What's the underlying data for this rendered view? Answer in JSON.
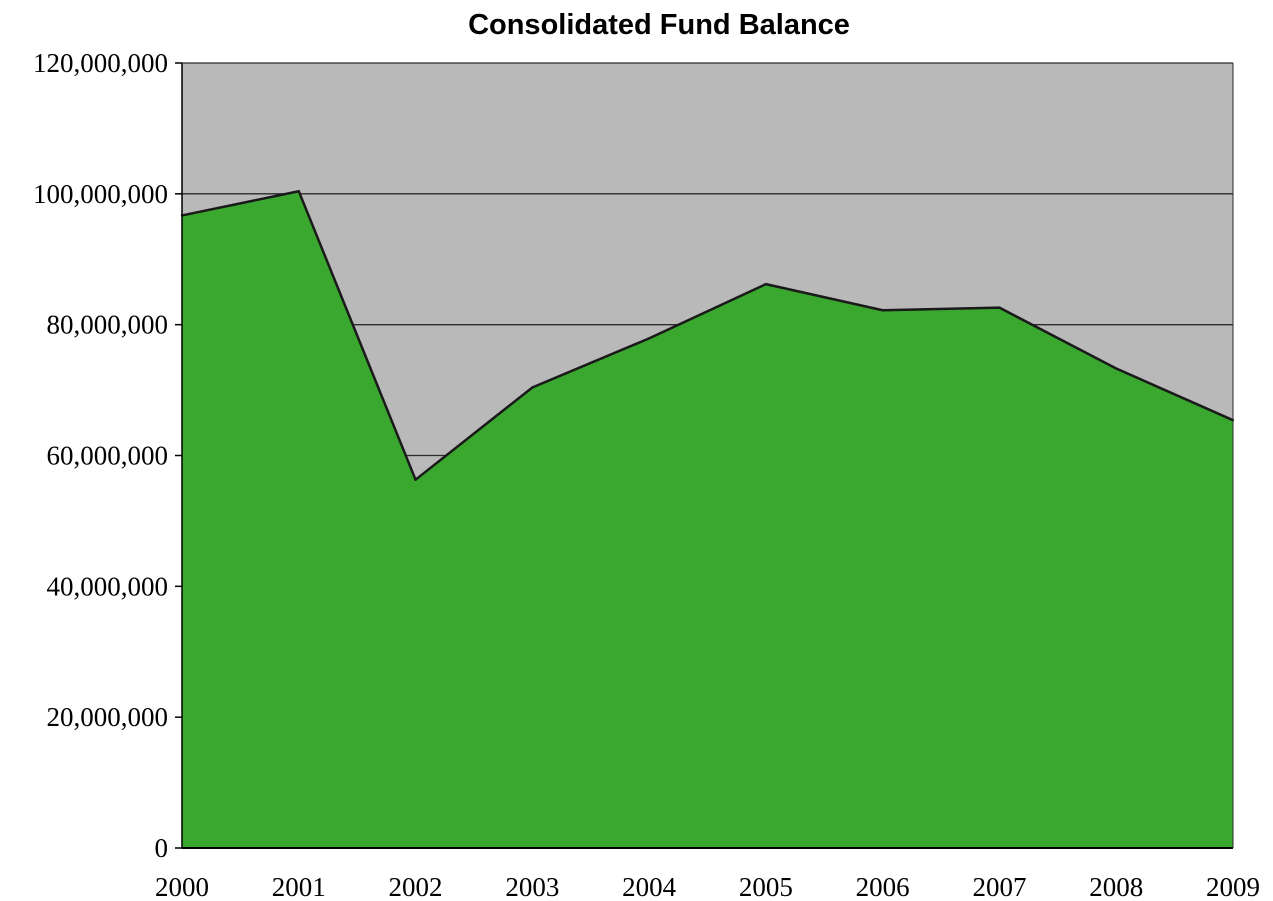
{
  "chart_data": {
    "type": "area",
    "title": "Consolidated Fund Balance",
    "xlabel": "",
    "ylabel": "",
    "categories": [
      "2000",
      "2001",
      "2002",
      "2003",
      "2004",
      "2005",
      "2006",
      "2007",
      "2008",
      "2009"
    ],
    "x": [
      2000,
      2001,
      2002,
      2003,
      2004,
      2005,
      2006,
      2007,
      2008,
      2009
    ],
    "series": [
      {
        "values": [
          96700000,
          100400000,
          56300000,
          70400000,
          77900000,
          86200000,
          82200000,
          82600000,
          73300000,
          65400000
        ]
      }
    ],
    "ylim": [
      0,
      120000000
    ],
    "y_ticks": [
      0,
      20000000,
      40000000,
      60000000,
      80000000,
      100000000,
      120000000
    ],
    "y_tick_labels": [
      "0",
      "20,000,000",
      "40,000,000",
      "60,000,000",
      "80,000,000",
      "100,000,000",
      "120,000,000"
    ],
    "grid": true,
    "legend": "none",
    "colors": {
      "area_fill": "#3aa82e",
      "area_outline": "#1a1a1a",
      "plot_background": "#b9b9b9",
      "gridline": "#2b2b2b"
    }
  }
}
